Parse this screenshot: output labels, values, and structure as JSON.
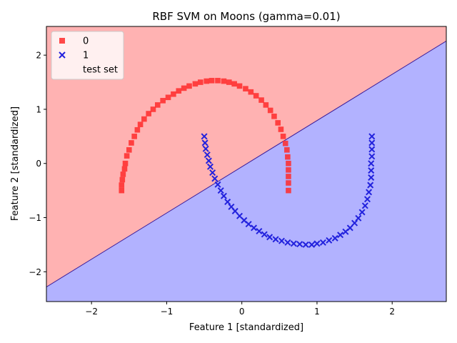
{
  "chart_data": {
    "type": "scatter",
    "title": "RBF SVM on Moons (gamma=0.01)",
    "xlabel": "Feature 1 [standardized]",
    "ylabel": "Feature 2 [standardized]",
    "xlim": [
      -2.6,
      2.72
    ],
    "ylim": [
      -2.55,
      2.53
    ],
    "xticks": [
      -2,
      -1,
      0,
      1,
      2
    ],
    "yticks": [
      -2,
      -1,
      0,
      1,
      2
    ],
    "xtick_labels": [
      "−2",
      "−1",
      "0",
      "1",
      "2"
    ],
    "ytick_labels": [
      "−2",
      "−1",
      "0",
      "1",
      "2"
    ],
    "grid": false,
    "legend_position": "top-left",
    "decision_boundary": {
      "x": [
        -2.6,
        2.72
      ],
      "y": [
        -2.28,
        2.26
      ]
    },
    "regions": [
      {
        "class": "0",
        "color": "#ffb2b2"
      },
      {
        "class": "1",
        "color": "#b2b2ff"
      }
    ],
    "boundary_color": "#3c1e9a",
    "legend": [
      {
        "label": "0",
        "marker": "square",
        "color": "#ff2a2a"
      },
      {
        "label": "1",
        "marker": "x",
        "color": "#2222dd"
      },
      {
        "label": "test set",
        "marker": "none",
        "color": ""
      }
    ],
    "series": [
      {
        "name": "0",
        "marker": "square",
        "color": "#ff2a2a",
        "points": [
          [
            -1.6,
            -0.5
          ],
          [
            -1.6,
            -0.4
          ],
          [
            -1.59,
            -0.3
          ],
          [
            -1.58,
            -0.2
          ],
          [
            -1.56,
            -0.1
          ],
          [
            -1.55,
            0.0
          ],
          [
            -1.53,
            0.14
          ],
          [
            -1.5,
            0.25
          ],
          [
            -1.47,
            0.38
          ],
          [
            -1.43,
            0.5
          ],
          [
            -1.39,
            0.62
          ],
          [
            -1.35,
            0.72
          ],
          [
            -1.3,
            0.82
          ],
          [
            -1.24,
            0.92
          ],
          [
            -1.18,
            1.0
          ],
          [
            -1.12,
            1.08
          ],
          [
            -1.05,
            1.16
          ],
          [
            -0.98,
            1.22
          ],
          [
            -0.91,
            1.28
          ],
          [
            -0.84,
            1.34
          ],
          [
            -0.77,
            1.39
          ],
          [
            -0.7,
            1.43
          ],
          [
            -0.62,
            1.47
          ],
          [
            -0.55,
            1.5
          ],
          [
            -0.47,
            1.52
          ],
          [
            -0.4,
            1.53
          ],
          [
            -0.32,
            1.53
          ],
          [
            -0.24,
            1.52
          ],
          [
            -0.17,
            1.5
          ],
          [
            -0.1,
            1.47
          ],
          [
            -0.03,
            1.43
          ],
          [
            0.05,
            1.38
          ],
          [
            0.12,
            1.32
          ],
          [
            0.19,
            1.25
          ],
          [
            0.26,
            1.17
          ],
          [
            0.32,
            1.08
          ],
          [
            0.38,
            0.98
          ],
          [
            0.43,
            0.87
          ],
          [
            0.48,
            0.75
          ],
          [
            0.52,
            0.63
          ],
          [
            0.55,
            0.5
          ],
          [
            0.58,
            0.37
          ],
          [
            0.6,
            0.25
          ],
          [
            0.61,
            0.12
          ],
          [
            0.62,
            0.0
          ],
          [
            0.62,
            -0.12
          ],
          [
            0.62,
            -0.24
          ],
          [
            0.62,
            -0.36
          ],
          [
            0.62,
            -0.5
          ]
        ]
      },
      {
        "name": "1",
        "marker": "x",
        "color": "#2222dd",
        "points": [
          [
            -0.5,
            0.5
          ],
          [
            -0.49,
            0.38
          ],
          [
            -0.48,
            0.27
          ],
          [
            -0.46,
            0.16
          ],
          [
            -0.44,
            0.05
          ],
          [
            -0.42,
            -0.06
          ],
          [
            -0.39,
            -0.17
          ],
          [
            -0.36,
            -0.28
          ],
          [
            -0.32,
            -0.39
          ],
          [
            -0.28,
            -0.5
          ],
          [
            -0.24,
            -0.6
          ],
          [
            -0.19,
            -0.71
          ],
          [
            -0.14,
            -0.8
          ],
          [
            -0.09,
            -0.88
          ],
          [
            -0.03,
            -0.97
          ],
          [
            0.03,
            -1.05
          ],
          [
            0.09,
            -1.12
          ],
          [
            0.16,
            -1.19
          ],
          [
            0.23,
            -1.25
          ],
          [
            0.3,
            -1.31
          ],
          [
            0.37,
            -1.36
          ],
          [
            0.45,
            -1.4
          ],
          [
            0.53,
            -1.43
          ],
          [
            0.61,
            -1.46
          ],
          [
            0.69,
            -1.48
          ],
          [
            0.77,
            -1.49
          ],
          [
            0.85,
            -1.5
          ],
          [
            0.93,
            -1.5
          ],
          [
            1.0,
            -1.48
          ],
          [
            1.08,
            -1.46
          ],
          [
            1.16,
            -1.42
          ],
          [
            1.24,
            -1.38
          ],
          [
            1.31,
            -1.32
          ],
          [
            1.38,
            -1.26
          ],
          [
            1.44,
            -1.19
          ],
          [
            1.5,
            -1.1
          ],
          [
            1.55,
            -1.01
          ],
          [
            1.6,
            -0.9
          ],
          [
            1.64,
            -0.78
          ],
          [
            1.67,
            -0.66
          ],
          [
            1.69,
            -0.53
          ],
          [
            1.71,
            -0.4
          ],
          [
            1.72,
            -0.26
          ],
          [
            1.72,
            -0.13
          ],
          [
            1.72,
            0.0
          ],
          [
            1.73,
            0.13
          ],
          [
            1.73,
            0.26
          ],
          [
            1.73,
            0.38
          ],
          [
            1.73,
            0.5
          ]
        ]
      }
    ]
  }
}
